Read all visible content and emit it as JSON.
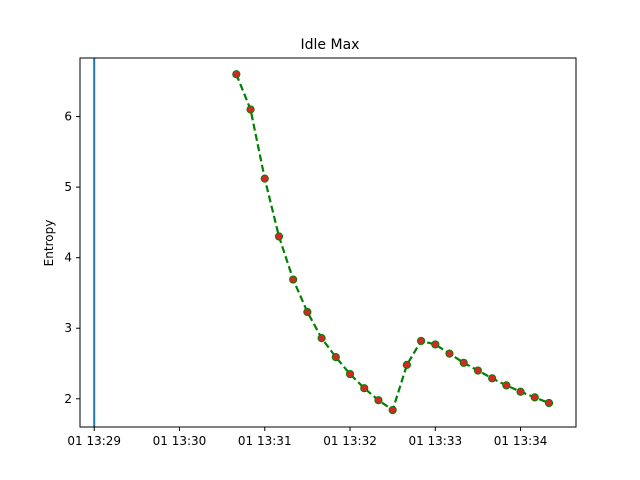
{
  "chart_data": {
    "type": "line",
    "title": "Idle Max",
    "xlabel": "",
    "ylabel": "Entropy",
    "x_ticks": [
      "01 13:29",
      "01 13:30",
      "01 13:31",
      "01 13:32",
      "01 13:33",
      "01 13:34"
    ],
    "y_ticks": [
      "2",
      "3",
      "4",
      "5",
      "6"
    ],
    "xlim": [
      "13:28:50",
      "13:34:39"
    ],
    "ylim": [
      1.6,
      6.83
    ],
    "grid": false,
    "vertical_line": {
      "x": "13:29:00",
      "color": "#1f77b4"
    },
    "series": [
      {
        "line_color": "#008000",
        "line_style": "dashed",
        "marker_color": "#d62728",
        "x": [
          "13:30:40",
          "13:30:50",
          "13:31:00",
          "13:31:10",
          "13:31:20",
          "13:31:30",
          "13:31:40",
          "13:31:50",
          "13:32:00",
          "13:32:10",
          "13:32:20",
          "13:32:30",
          "13:32:40",
          "13:32:50",
          "13:33:00",
          "13:33:10",
          "13:33:20",
          "13:33:30",
          "13:33:40",
          "13:33:50",
          "13:34:00",
          "13:34:10",
          "13:34:20"
        ],
        "values": [
          6.6,
          6.1,
          5.12,
          4.3,
          3.69,
          3.23,
          2.86,
          2.59,
          2.35,
          2.15,
          1.98,
          1.84,
          2.48,
          2.82,
          2.77,
          2.64,
          2.51,
          2.4,
          2.29,
          2.19,
          2.1,
          2.02,
          1.94
        ]
      }
    ]
  }
}
